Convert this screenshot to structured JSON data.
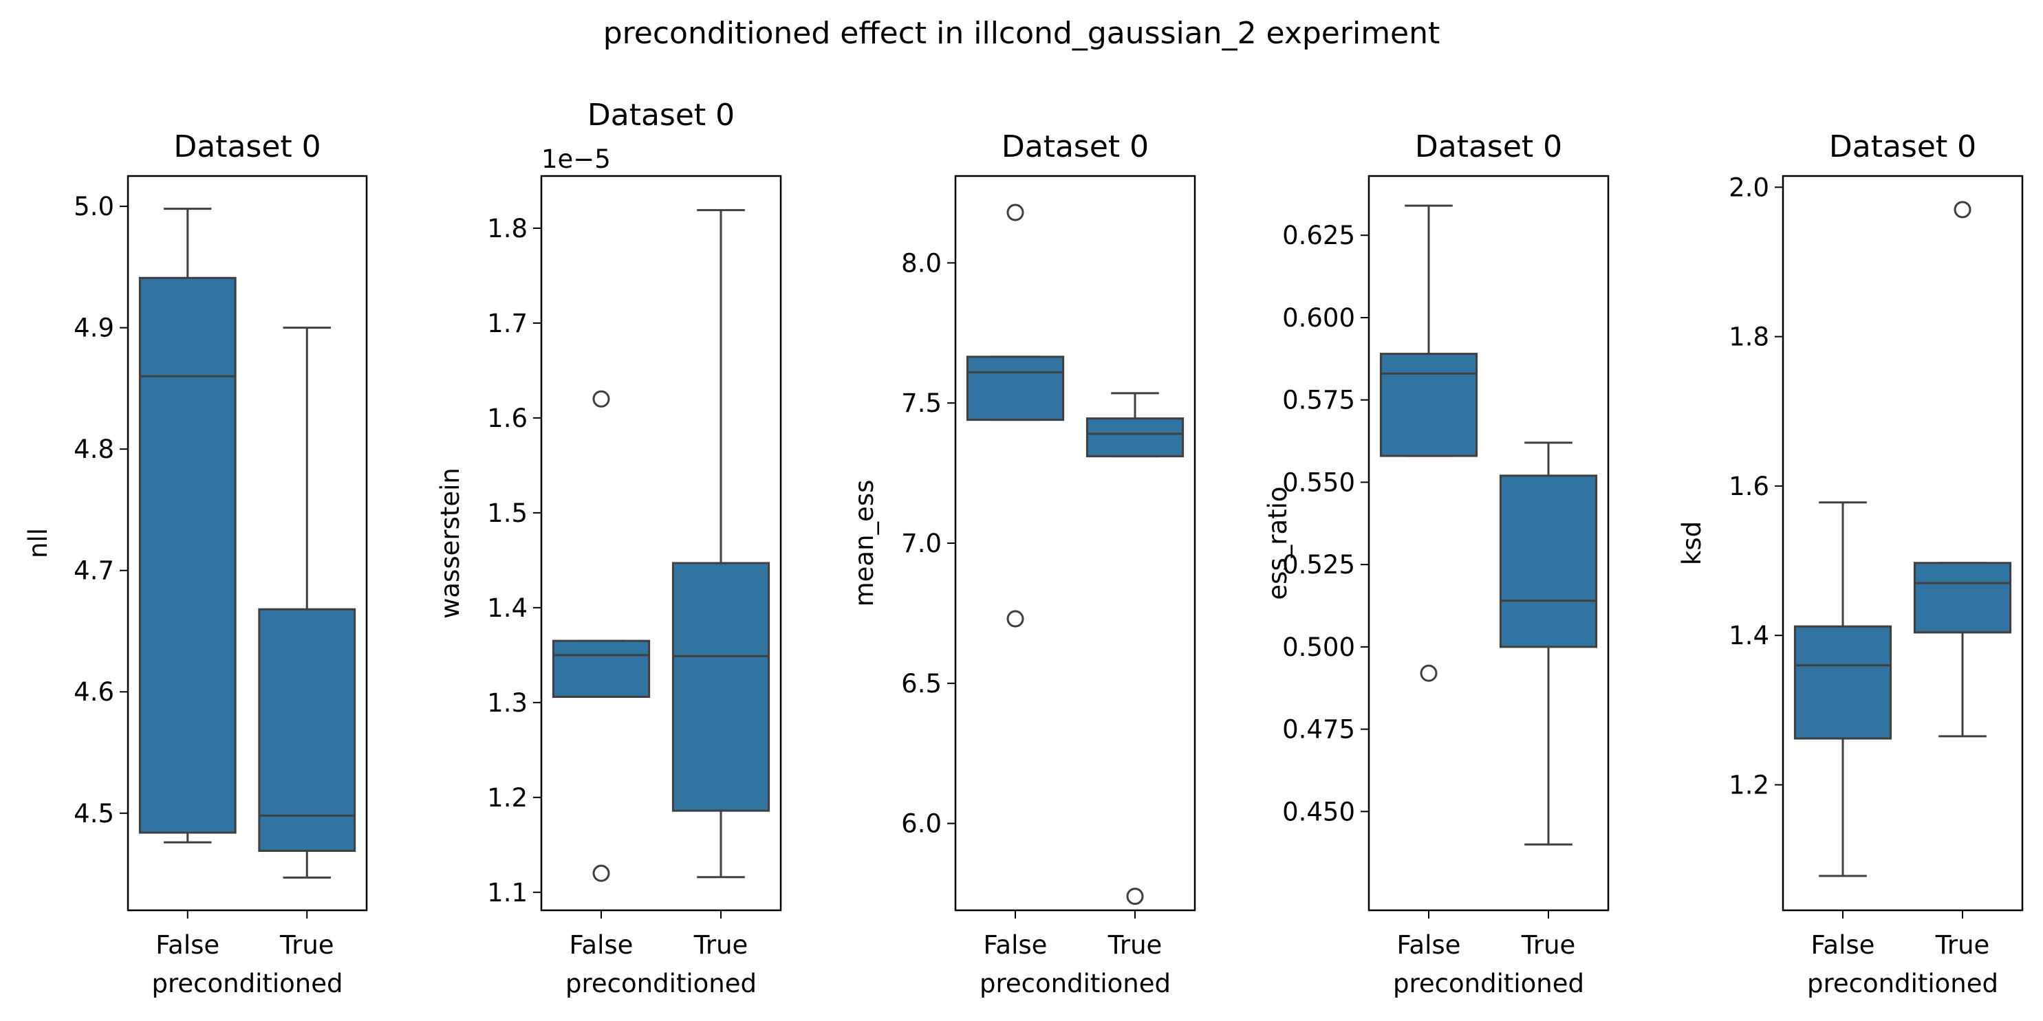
{
  "figure_title": "preconditioned effect in illcond_gaussian_2 experiment",
  "colors": {
    "box_fill": "#3274a1",
    "line": "#3f3f3f",
    "axes": "#000000"
  },
  "chart_data": [
    {
      "type": "box",
      "title": "Dataset 0",
      "xlabel": "preconditioned",
      "ylabel": "nll",
      "categories": [
        "False",
        "True"
      ],
      "ylim": [
        4.42,
        5.025
      ],
      "yticks": [
        4.5,
        4.6,
        4.7,
        4.8,
        4.9,
        5.0
      ],
      "ytick_labels": [
        "4.5",
        "4.6",
        "4.7",
        "4.8",
        "4.9",
        "5.0"
      ],
      "boxes": [
        {
          "whislo": 4.476,
          "q1": 4.484,
          "med": 4.86,
          "q3": 4.941,
          "whishi": 4.998,
          "fliers": []
        },
        {
          "whislo": 4.447,
          "q1": 4.469,
          "med": 4.498,
          "q3": 4.668,
          "whishi": 4.9,
          "fliers": []
        }
      ]
    },
    {
      "type": "box",
      "title": "Dataset 0",
      "xlabel": "preconditioned",
      "ylabel": "wasserstein",
      "offset_text": "1e−5",
      "categories": [
        "False",
        "True"
      ],
      "ylim": [
        1.081,
        1.855
      ],
      "yticks": [
        1.1,
        1.2,
        1.3,
        1.4,
        1.5,
        1.6,
        1.7,
        1.8
      ],
      "ytick_labels": [
        "1.1",
        "1.2",
        "1.3",
        "1.4",
        "1.5",
        "1.6",
        "1.7",
        "1.8"
      ],
      "boxes": [
        {
          "whislo": 1.306,
          "q1": 1.306,
          "med": 1.35,
          "q3": 1.365,
          "whishi": 1.365,
          "fliers": [
            1.62,
            1.12
          ]
        },
        {
          "whislo": 1.116,
          "q1": 1.186,
          "med": 1.349,
          "q3": 1.447,
          "whishi": 1.819,
          "fliers": []
        }
      ]
    },
    {
      "type": "box",
      "title": "Dataset 0",
      "xlabel": "preconditioned",
      "ylabel": "mean_ess",
      "categories": [
        "False",
        "True"
      ],
      "ylim": [
        5.69,
        8.31
      ],
      "yticks": [
        6.0,
        6.5,
        7.0,
        7.5,
        8.0
      ],
      "ytick_labels": [
        "6.0",
        "6.5",
        "7.0",
        "7.5",
        "8.0"
      ],
      "boxes": [
        {
          "whislo": 7.44,
          "q1": 7.44,
          "med": 7.61,
          "q3": 7.665,
          "whishi": 7.665,
          "fliers": [
            8.18,
            6.73
          ]
        },
        {
          "whislo": 7.31,
          "q1": 7.31,
          "med": 7.39,
          "q3": 7.445,
          "whishi": 7.535,
          "fliers": [
            5.74
          ]
        }
      ]
    },
    {
      "type": "box",
      "title": "Dataset 0",
      "xlabel": "preconditioned",
      "ylabel": "ess_ratio",
      "categories": [
        "False",
        "True"
      ],
      "ylim": [
        0.42,
        0.643
      ],
      "yticks": [
        0.45,
        0.475,
        0.5,
        0.525,
        0.55,
        0.575,
        0.6,
        0.625
      ],
      "ytick_labels": [
        "0.450",
        "0.475",
        "0.500",
        "0.525",
        "0.550",
        "0.575",
        "0.600",
        "0.625"
      ],
      "boxes": [
        {
          "whislo": 0.558,
          "q1": 0.558,
          "med": 0.583,
          "q3": 0.589,
          "whishi": 0.634,
          "fliers": [
            0.492
          ]
        },
        {
          "whislo": 0.44,
          "q1": 0.5,
          "med": 0.514,
          "q3": 0.552,
          "whishi": 0.562,
          "fliers": []
        }
      ]
    },
    {
      "type": "box",
      "title": "Dataset 0",
      "xlabel": "preconditioned",
      "ylabel": "ksd",
      "categories": [
        "False",
        "True"
      ],
      "ylim": [
        1.032,
        2.015
      ],
      "yticks": [
        1.2,
        1.4,
        1.6,
        1.8,
        2.0
      ],
      "ytick_labels": [
        "1.2",
        "1.4",
        "1.6",
        "1.8",
        "2.0"
      ],
      "boxes": [
        {
          "whislo": 1.078,
          "q1": 1.262,
          "med": 1.36,
          "q3": 1.412,
          "whishi": 1.578,
          "fliers": []
        },
        {
          "whislo": 1.265,
          "q1": 1.404,
          "med": 1.47,
          "q3": 1.497,
          "whishi": 1.497,
          "fliers": [
            1.97
          ]
        }
      ]
    }
  ]
}
